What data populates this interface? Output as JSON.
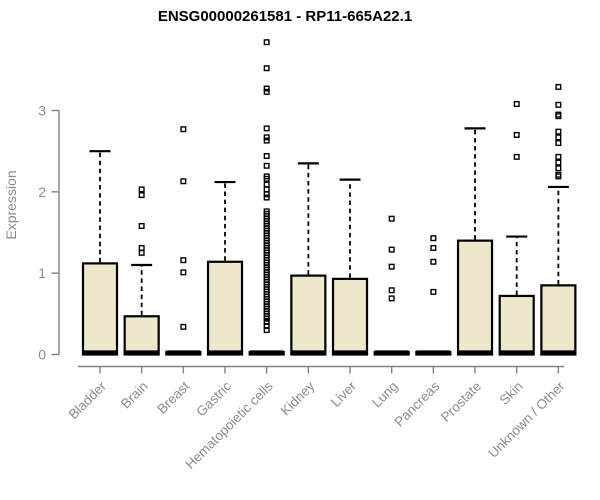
{
  "colors": {
    "background": "#ffffff",
    "box_fill": "#EDE7CB",
    "box_border": "#000000",
    "axis_line": "#828282",
    "axis_text": "#8c8c8c",
    "title_text": "#000000"
  },
  "chart_data": {
    "type": "boxplot",
    "title": "ENSG00000261581 - RP11-665A22.1",
    "xlabel": "",
    "ylabel": "Expression",
    "ylim": [
      0,
      3.9
    ],
    "yticks": [
      0,
      1,
      2,
      3
    ],
    "grid": false,
    "legend": null,
    "categories": [
      "Bladder",
      "Brain",
      "Breast",
      "Gastric",
      "Hematopoietic cells",
      "Kidney",
      "Liver",
      "Lung",
      "Pancreas",
      "Prostate",
      "Skin",
      "Unknown / Other"
    ],
    "series": [
      {
        "name": "Bladder",
        "q1": 0,
        "median": 0.02,
        "q3": 1.12,
        "whisker_low": 0,
        "whisker_high": 2.5,
        "outliers": []
      },
      {
        "name": "Brain",
        "q1": 0,
        "median": 0.02,
        "q3": 0.47,
        "whisker_low": 0,
        "whisker_high": 1.1,
        "outliers": [
          1.25,
          1.31,
          1.58,
          1.96,
          2.03
        ]
      },
      {
        "name": "Breast",
        "q1": 0,
        "median": 0.02,
        "q3": 0.03,
        "whisker_low": 0,
        "whisker_high": null,
        "outliers": [
          0.34,
          1.01,
          1.16,
          2.13,
          2.77
        ]
      },
      {
        "name": "Gastric",
        "q1": 0,
        "median": 0.02,
        "q3": 1.14,
        "whisker_low": 0,
        "whisker_high": 2.12,
        "outliers": []
      },
      {
        "name": "Hematopoietic cells",
        "q1": 0,
        "median": 0.02,
        "q3": 0.03,
        "whisker_low": 0,
        "whisker_high": null,
        "outliers": [
          3.84,
          3.52,
          3.27,
          3.23,
          2.78,
          2.67,
          2.63,
          2.44,
          2.32,
          2.19,
          2.16,
          2.09,
          2.03,
          1.97,
          1.93,
          1.76,
          1.73,
          1.7,
          1.67,
          1.64,
          1.61,
          1.58,
          1.55,
          1.52,
          1.49,
          1.46,
          1.43,
          1.4,
          1.37,
          1.34,
          1.31,
          1.28,
          1.25,
          1.22,
          1.19,
          1.16,
          1.13,
          1.1,
          1.07,
          1.04,
          1.01,
          0.98,
          0.95,
          0.92,
          0.89,
          0.86,
          0.83,
          0.8,
          0.77,
          0.74,
          0.71,
          0.68,
          0.65,
          0.62,
          0.59,
          0.56,
          0.53,
          0.5,
          0.47,
          0.44,
          0.4,
          0.35,
          0.3
        ]
      },
      {
        "name": "Kidney",
        "q1": 0,
        "median": 0.02,
        "q3": 0.97,
        "whisker_low": 0,
        "whisker_high": 2.35,
        "outliers": []
      },
      {
        "name": "Liver",
        "q1": 0,
        "median": 0.02,
        "q3": 0.93,
        "whisker_low": 0,
        "whisker_high": 2.15,
        "outliers": []
      },
      {
        "name": "Lung",
        "q1": 0,
        "median": 0.02,
        "q3": 0.03,
        "whisker_low": 0,
        "whisker_high": null,
        "outliers": [
          0.69,
          0.79,
          1.08,
          1.29,
          1.67
        ]
      },
      {
        "name": "Pancreas",
        "q1": 0,
        "median": 0.02,
        "q3": 0.03,
        "whisker_low": 0,
        "whisker_high": null,
        "outliers": [
          0.77,
          1.14,
          1.31,
          1.43
        ]
      },
      {
        "name": "Prostate",
        "q1": 0,
        "median": 0.02,
        "q3": 1.4,
        "whisker_low": 0,
        "whisker_high": 2.78,
        "outliers": []
      },
      {
        "name": "Skin",
        "q1": 0,
        "median": 0.02,
        "q3": 0.72,
        "whisker_low": 0,
        "whisker_high": 1.45,
        "outliers": [
          2.43,
          2.7,
          3.08
        ]
      },
      {
        "name": "Unknown / Other",
        "q1": 0,
        "median": 0.02,
        "q3": 0.85,
        "whisker_low": 0,
        "whisker_high": 2.06,
        "outliers": [
          2.19,
          2.21,
          2.29,
          2.36,
          2.43,
          2.6,
          2.67,
          2.74,
          2.93,
          2.95,
          3.07,
          3.29
        ]
      }
    ]
  }
}
